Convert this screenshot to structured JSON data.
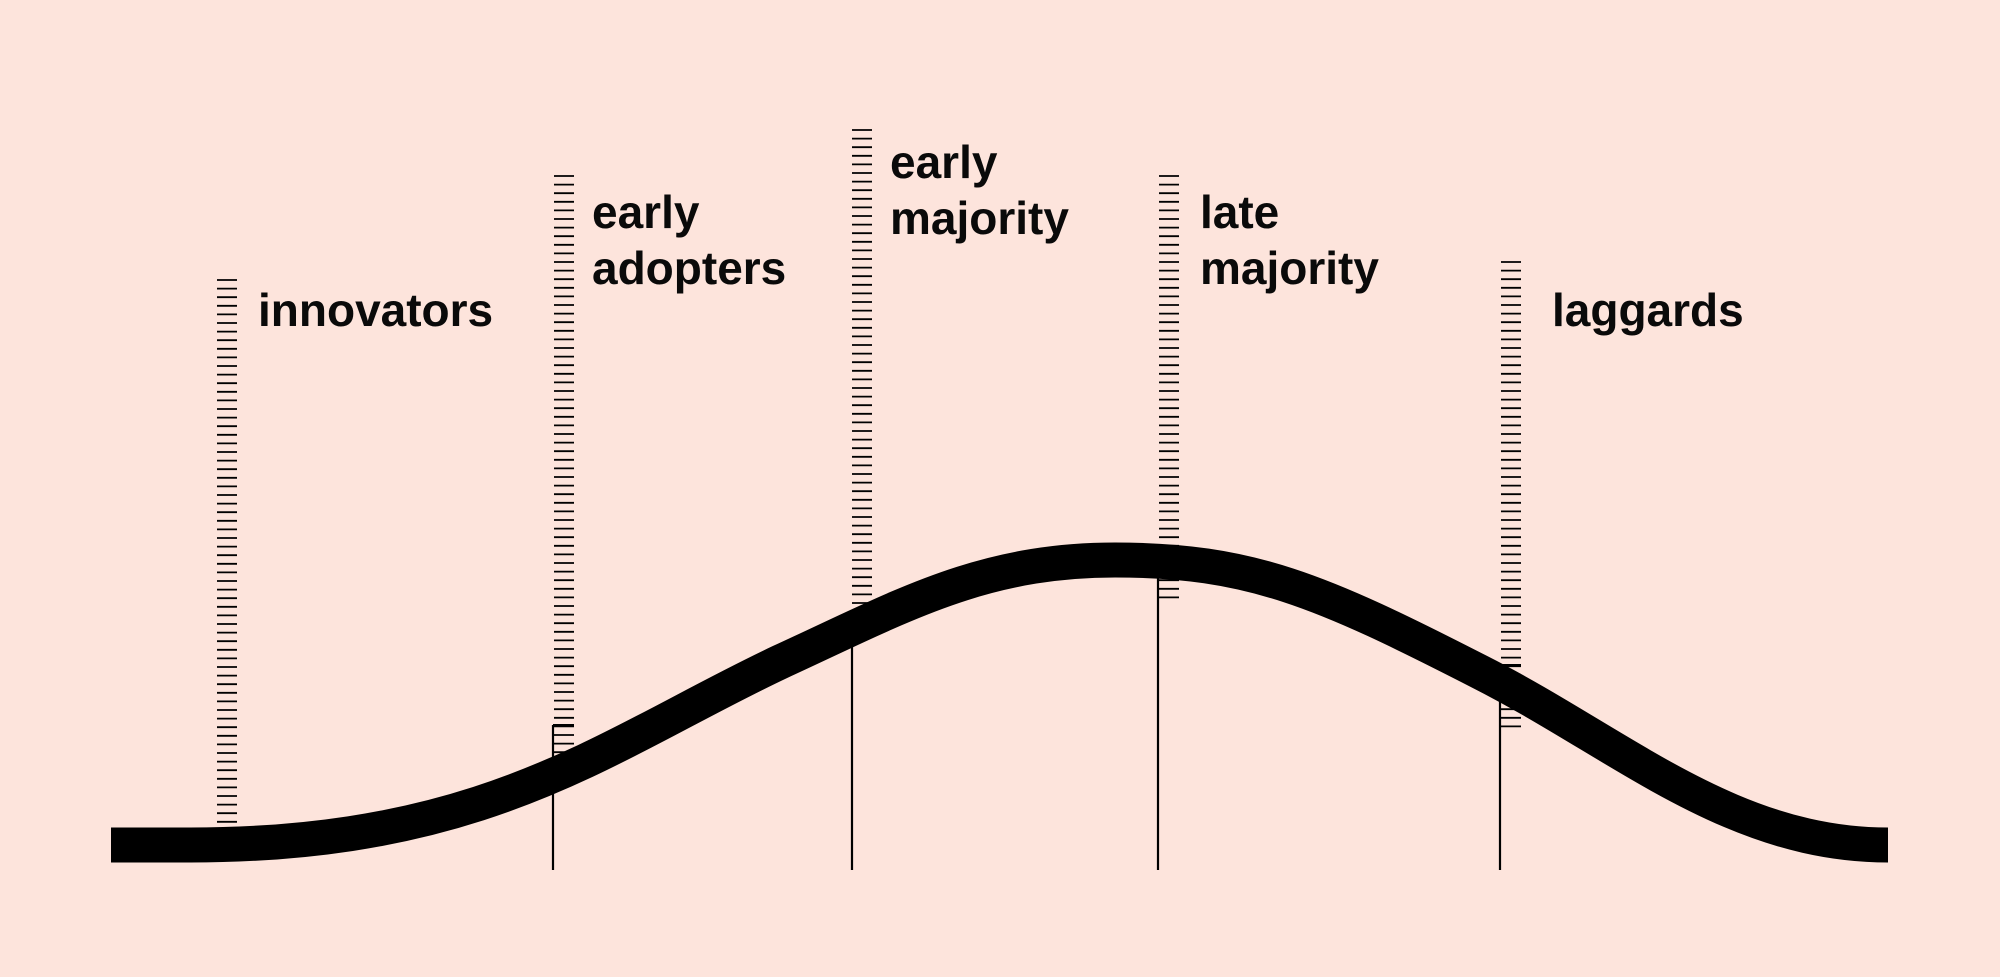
{
  "diagram": {
    "title": "",
    "background_color": "#fde4dc",
    "line_color": "#000000",
    "curve": "bell",
    "segments": [
      {
        "id": "innovators",
        "label_lines": [
          "innovators"
        ]
      },
      {
        "id": "early-adopters",
        "label_lines": [
          "early",
          "adopters"
        ]
      },
      {
        "id": "early-majority",
        "label_lines": [
          "early",
          "majority"
        ]
      },
      {
        "id": "late-majority",
        "label_lines": [
          "late",
          "majority"
        ]
      },
      {
        "id": "laggards",
        "label_lines": [
          "laggards"
        ]
      }
    ]
  }
}
